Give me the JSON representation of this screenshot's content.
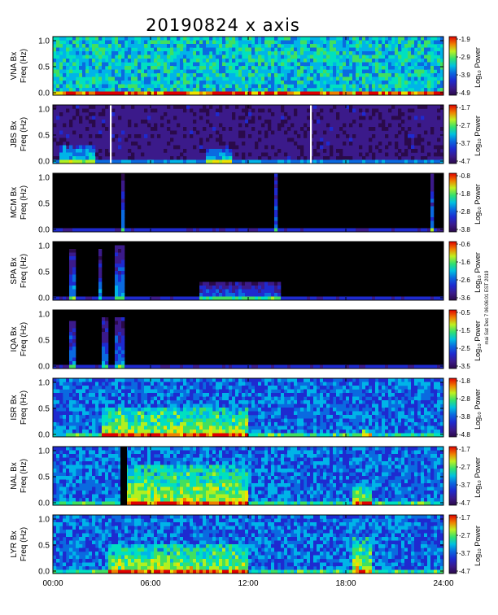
{
  "chart_data": {
    "type": "heatmap",
    "title": "20190824 x axis",
    "x_tick_labels": [
      "00:00",
      "06:00",
      "12:00",
      "18:00",
      "24:00"
    ],
    "x_range_hours": [
      0,
      24
    ],
    "y_range_hz": [
      0,
      1.0
    ],
    "y_tick_labels": [
      "0.0",
      "0.5",
      "1.0"
    ],
    "colorbar_label": "Log₁₀ Power",
    "side_note": "mai Sat Dec 7 06:06:01 EST 2019",
    "panels": [
      {
        "station": "VNA",
        "ylabel1": "VNA Bx",
        "ylabel2": "Freq (Hz)",
        "cb_ticks": [
          "-1.9",
          "-2.9",
          "-3.9",
          "-4.9"
        ],
        "cb_range": [
          -4.9,
          -1.9
        ],
        "background": "blue-cyan",
        "gaps_hours": [],
        "events": [
          {
            "hours": [
              0,
              24
            ],
            "freq_max": 0.05,
            "note": "low-frequency band along bottom"
          }
        ]
      },
      {
        "station": "JBS",
        "ylabel1": "JBS Bx",
        "ylabel2": "Freq (Hz)",
        "cb_ticks": [
          "-1.7",
          "-2.7",
          "-3.7",
          "-4.7"
        ],
        "cb_range": [
          -4.7,
          -1.7
        ],
        "background": "purple",
        "gaps_hours": [
          3.5,
          15.8
        ],
        "events": [
          {
            "hours": [
              0.5,
              2.5
            ],
            "freq_max": 0.3
          },
          {
            "hours": [
              9.5,
              11
            ],
            "freq_max": 0.25
          }
        ]
      },
      {
        "station": "MCM",
        "ylabel1": "MCM Bx",
        "ylabel2": "Freq (Hz)",
        "cb_ticks": [
          "-0.8",
          "-1.8",
          "-2.8",
          "-3.8"
        ],
        "cb_range": [
          -3.8,
          -0.8
        ],
        "background": "black",
        "gaps_hours": [],
        "events": [
          {
            "hours": [
              4.2,
              4.3
            ],
            "freq_max": 1.0
          },
          {
            "hours": [
              13.7,
              13.8
            ],
            "freq_max": 1.0
          },
          {
            "hours": [
              23.2,
              23.3
            ],
            "freq_max": 1.0
          }
        ]
      },
      {
        "station": "SPA",
        "ylabel1": "SPA Bx",
        "ylabel2": "Freq (Hz)",
        "cb_ticks": [
          "-0.6",
          "-1.6",
          "-2.6",
          "-3.6"
        ],
        "cb_range": [
          -3.6,
          -0.6
        ],
        "background": "black",
        "gaps_hours": [],
        "events": [
          {
            "hours": [
              0.9,
              1.3
            ],
            "freq_max": 0.9
          },
          {
            "hours": [
              2.8,
              3.1
            ],
            "freq_max": 0.85
          },
          {
            "hours": [
              3.8,
              4.3
            ],
            "freq_max": 0.95
          },
          {
            "hours": [
              9,
              14
            ],
            "freq_max": 0.3
          }
        ]
      },
      {
        "station": "IQA",
        "ylabel1": "IQA Bx",
        "ylabel2": "Freq (Hz)",
        "cb_ticks": [
          "-0.5",
          "-1.5",
          "-2.5",
          "-3.5"
        ],
        "cb_range": [
          -3.5,
          -0.5
        ],
        "background": "black",
        "gaps_hours": [],
        "events": [
          {
            "hours": [
              0.9,
              1.3
            ],
            "freq_max": 0.8
          },
          {
            "hours": [
              3,
              3.4
            ],
            "freq_max": 0.9
          },
          {
            "hours": [
              3.8,
              4.3
            ],
            "freq_max": 0.85
          }
        ]
      },
      {
        "station": "ISR",
        "ylabel1": "ISR Bx",
        "ylabel2": "Freq (Hz)",
        "cb_ticks": [
          "-1.8",
          "-2.8",
          "-3.8",
          "-4.8"
        ],
        "cb_range": [
          -4.8,
          -1.8
        ],
        "background": "blue",
        "gaps_hours": [],
        "events": [
          {
            "hours": [
              3,
              12
            ],
            "freq_max": 0.5
          },
          {
            "hours": [
              19,
              19.6
            ],
            "freq_max": 0.15
          }
        ]
      },
      {
        "station": "NAL",
        "ylabel1": "NAL Bx",
        "ylabel2": "Freq (Hz)",
        "cb_ticks": [
          "-1.7",
          "-2.7",
          "-3.7",
          "-4.7"
        ],
        "cb_range": [
          -4.7,
          -1.7
        ],
        "background": "blue",
        "gaps_hours": [
          4.0
        ],
        "events": [
          {
            "hours": [
              4.5,
              12
            ],
            "freq_max": 0.7
          },
          {
            "hours": [
              18.5,
              19.5
            ],
            "freq_max": 0.3
          }
        ]
      },
      {
        "station": "LYR",
        "ylabel1": "LYR Bx",
        "ylabel2": "Freq (Hz)",
        "cb_ticks": [
          "-1.7",
          "-2.7",
          "-3.7",
          "-4.7"
        ],
        "cb_range": [
          -4.7,
          -1.7
        ],
        "background": "blue",
        "gaps_hours": [],
        "events": [
          {
            "hours": [
              3.5,
              12
            ],
            "freq_max": 0.5
          },
          {
            "hours": [
              18.5,
              19.5
            ],
            "freq_max": 0.6
          }
        ]
      }
    ]
  },
  "colormap": [
    "#000000",
    "#2a0a4a",
    "#3b1a8a",
    "#1e2ad0",
    "#0a6ae0",
    "#00b4e8",
    "#00e0c0",
    "#40e060",
    "#b0f020",
    "#f0e000",
    "#f08000",
    "#e00000"
  ]
}
